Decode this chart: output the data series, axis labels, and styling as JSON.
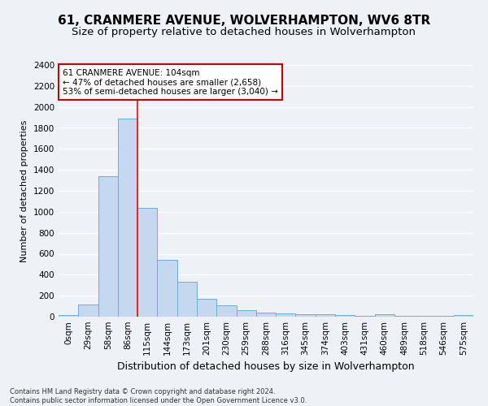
{
  "title": "61, CRANMERE AVENUE, WOLVERHAMPTON, WV6 8TR",
  "subtitle": "Size of property relative to detached houses in Wolverhampton",
  "xlabel": "Distribution of detached houses by size in Wolverhampton",
  "ylabel": "Number of detached properties",
  "footer_line1": "Contains HM Land Registry data © Crown copyright and database right 2024.",
  "footer_line2": "Contains public sector information licensed under the Open Government Licence v3.0.",
  "categories": [
    "0sqm",
    "29sqm",
    "58sqm",
    "86sqm",
    "115sqm",
    "144sqm",
    "173sqm",
    "201sqm",
    "230sqm",
    "259sqm",
    "288sqm",
    "316sqm",
    "345sqm",
    "374sqm",
    "403sqm",
    "431sqm",
    "460sqm",
    "489sqm",
    "518sqm",
    "546sqm",
    "575sqm"
  ],
  "values": [
    15,
    120,
    1340,
    1890,
    1040,
    545,
    335,
    170,
    110,
    65,
    40,
    30,
    25,
    20,
    15,
    5,
    20,
    5,
    5,
    5,
    15
  ],
  "bar_color": "#c5d8f0",
  "bar_edgecolor": "#6aaed6",
  "red_line_x": 3.5,
  "annotation_line1": "61 CRANMERE AVENUE: 104sqm",
  "annotation_line2": "← 47% of detached houses are smaller (2,658)",
  "annotation_line3": "53% of semi-detached houses are larger (3,040) →",
  "annotation_box_color": "#ffffff",
  "annotation_box_edgecolor": "#cc0000",
  "ylim": [
    0,
    2400
  ],
  "yticks": [
    0,
    200,
    400,
    600,
    800,
    1000,
    1200,
    1400,
    1600,
    1800,
    2000,
    2200,
    2400
  ],
  "background_color": "#eef2f7",
  "grid_color": "#ffffff",
  "title_fontsize": 11,
  "subtitle_fontsize": 9.5,
  "ylabel_fontsize": 8,
  "xlabel_fontsize": 9,
  "tick_fontsize": 7.5,
  "footer_fontsize": 6,
  "annotation_fontsize": 7.5
}
